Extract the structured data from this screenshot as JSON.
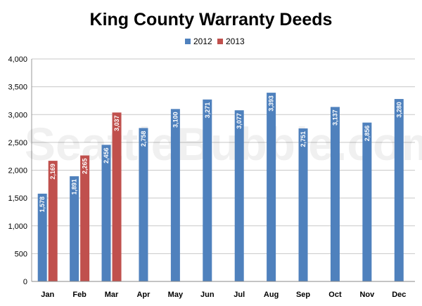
{
  "chart_data": {
    "type": "bar",
    "title": "King County Warranty Deeds",
    "watermark": "SeattleBubble.com",
    "categories": [
      "Jan",
      "Feb",
      "Mar",
      "Apr",
      "May",
      "Jun",
      "Jul",
      "Aug",
      "Sep",
      "Oct",
      "Nov",
      "Dec"
    ],
    "series": [
      {
        "name": "2012",
        "color": "#4f81bd",
        "values": [
          1578,
          1891,
          2456,
          2758,
          3100,
          3271,
          3077,
          3393,
          2751,
          3137,
          2856,
          3280
        ],
        "labels": [
          "1,578",
          "1,891",
          "2,456",
          "2,758",
          "3,100",
          "3,271",
          "3,077",
          "3,393",
          "2,751",
          "3,137",
          "2,856",
          "3,280"
        ]
      },
      {
        "name": "2013",
        "color": "#c0504d",
        "values": [
          2169,
          2265,
          3037,
          null,
          null,
          null,
          null,
          null,
          null,
          null,
          null,
          null
        ],
        "labels": [
          "2,169",
          "2,265",
          "3,037",
          "",
          "",
          "",
          "",
          "",
          "",
          "",
          "",
          ""
        ]
      }
    ],
    "yticks": [
      "0",
      "500",
      "1,000",
      "1,500",
      "2,000",
      "2,500",
      "3,000",
      "3,500",
      "4,000"
    ],
    "ylim": [
      0,
      4000
    ],
    "grid": true,
    "legend_position": "top-center"
  }
}
